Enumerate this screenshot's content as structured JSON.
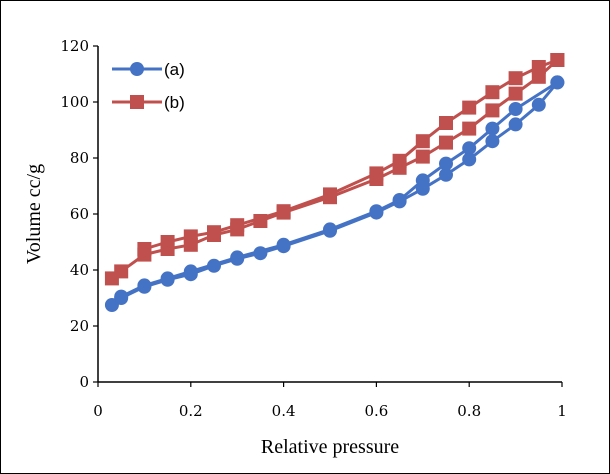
{
  "chart_data": {
    "type": "line",
    "title": "",
    "xlabel": "Relative pressure",
    "ylabel": "Volume cc/g",
    "xlim": [
      0,
      1
    ],
    "ylim": [
      0,
      120
    ],
    "xticks": [
      0,
      0.2,
      0.4,
      0.6,
      0.8,
      1
    ],
    "xtick_labels": [
      "0",
      "0.2",
      "0.4",
      "0.6",
      "0.8",
      "1"
    ],
    "yticks": [
      0,
      20,
      40,
      60,
      80,
      100,
      120
    ],
    "ytick_labels": [
      "0",
      "20",
      "40",
      "60",
      "80",
      "100",
      "120"
    ],
    "grid": false,
    "legend_position": "top-left",
    "series": [
      {
        "name": "(a)",
        "color": "#4472C4",
        "marker": "circle",
        "adsorption": {
          "x": [
            0.03,
            0.05,
            0.1,
            0.15,
            0.2,
            0.25,
            0.3,
            0.35,
            0.4,
            0.5,
            0.6,
            0.65,
            0.7,
            0.75,
            0.8,
            0.85,
            0.9,
            0.95,
            0.99
          ],
          "y": [
            27.5,
            30,
            34,
            36.5,
            38.5,
            41.5,
            44,
            46,
            48.5,
            54,
            60.5,
            64.5,
            69,
            74,
            79.5,
            86,
            92,
            99,
            107
          ]
        },
        "desorption": {
          "x": [
            0.99,
            0.9,
            0.85,
            0.8,
            0.75,
            0.7,
            0.65,
            0.6,
            0.5,
            0.4,
            0.3,
            0.2,
            0.15,
            0.1,
            0.05
          ],
          "y": [
            107,
            97.5,
            90.5,
            83.5,
            78,
            72,
            65,
            61,
            54.5,
            49,
            44.5,
            39.5,
            37,
            34.5,
            30.5
          ]
        }
      },
      {
        "name": "(b)",
        "color": "#C0504D",
        "marker": "square",
        "adsorption": {
          "x": [
            0.03,
            0.05,
            0.1,
            0.15,
            0.2,
            0.25,
            0.3,
            0.35,
            0.4,
            0.5,
            0.6,
            0.65,
            0.7,
            0.75,
            0.8,
            0.85,
            0.9,
            0.95,
            0.99
          ],
          "y": [
            37,
            39.5,
            45.5,
            47.5,
            49,
            52.5,
            54.5,
            57.5,
            60.5,
            66,
            72.5,
            76.5,
            80.5,
            85.5,
            90.5,
            97,
            103,
            109,
            115
          ]
        },
        "desorption": {
          "x": [
            0.99,
            0.95,
            0.9,
            0.85,
            0.8,
            0.75,
            0.7,
            0.65,
            0.6,
            0.5,
            0.4,
            0.3,
            0.25,
            0.2,
            0.15,
            0.1
          ],
          "y": [
            115,
            112.5,
            108.5,
            103.5,
            98,
            92.5,
            86,
            79,
            74.5,
            67,
            61,
            56,
            53.5,
            52,
            50,
            47.5
          ]
        }
      }
    ]
  }
}
